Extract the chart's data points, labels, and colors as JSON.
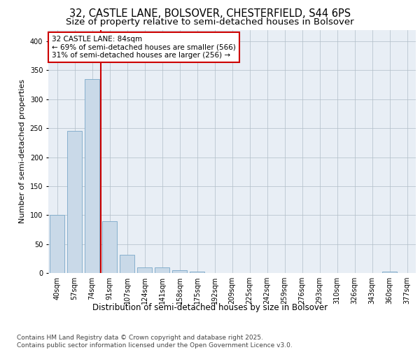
{
  "title_line1": "32, CASTLE LANE, BOLSOVER, CHESTERFIELD, S44 6PS",
  "title_line2": "Size of property relative to semi-detached houses in Bolsover",
  "xlabel": "Distribution of semi-detached houses by size in Bolsover",
  "ylabel": "Number of semi-detached properties",
  "categories": [
    "40sqm",
    "57sqm",
    "74sqm",
    "91sqm",
    "107sqm",
    "124sqm",
    "141sqm",
    "158sqm",
    "175sqm",
    "192sqm",
    "209sqm",
    "225sqm",
    "242sqm",
    "259sqm",
    "276sqm",
    "293sqm",
    "310sqm",
    "326sqm",
    "343sqm",
    "360sqm",
    "377sqm"
  ],
  "values": [
    100,
    245,
    335,
    90,
    32,
    10,
    10,
    5,
    3,
    0,
    0,
    0,
    0,
    0,
    0,
    0,
    0,
    0,
    0,
    3,
    0
  ],
  "bar_color": "#c9d9e8",
  "bar_edge_color": "#7aa8c8",
  "red_line_x": 2.5,
  "annotation_text": "32 CASTLE LANE: 84sqm\n← 69% of semi-detached houses are smaller (566)\n31% of semi-detached houses are larger (256) →",
  "annotation_box_color": "#ffffff",
  "annotation_edge_color": "#cc0000",
  "vline_color": "#cc0000",
  "ylim": [
    0,
    420
  ],
  "yticks": [
    0,
    50,
    100,
    150,
    200,
    250,
    300,
    350,
    400
  ],
  "background_color": "#e8eef5",
  "footer_text": "Contains HM Land Registry data © Crown copyright and database right 2025.\nContains public sector information licensed under the Open Government Licence v3.0.",
  "title_fontsize": 10.5,
  "subtitle_fontsize": 9.5,
  "tick_fontsize": 7,
  "ylabel_fontsize": 8,
  "xlabel_fontsize": 8.5,
  "annotation_fontsize": 7.5,
  "footer_fontsize": 6.5
}
